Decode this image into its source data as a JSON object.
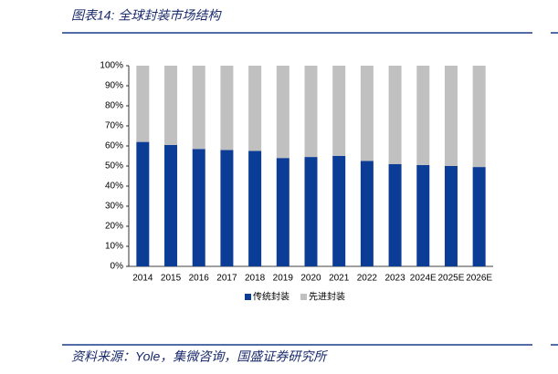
{
  "chart_data": {
    "type": "stacked_bar",
    "title": "图表14:  全球封装市场结构",
    "source": "资料来源：Yole，集微咨询，国盛证券研究所",
    "categories": [
      "2014",
      "2015",
      "2016",
      "2017",
      "2018",
      "2019",
      "2020",
      "2021",
      "2022",
      "2023",
      "2024E",
      "2025E",
      "2026E"
    ],
    "series": [
      {
        "name": "传统封装",
        "color": "#0b3c96",
        "values": [
          62,
          60.5,
          58.5,
          58,
          57.5,
          54,
          54.5,
          55,
          52.5,
          51,
          50.5,
          50,
          49.5
        ]
      },
      {
        "name": "先进封装",
        "color": "#c0c0c0",
        "values": [
          38,
          39.5,
          41.5,
          42,
          42.5,
          46,
          45.5,
          45,
          47.5,
          49,
          49.5,
          50,
          50.5
        ]
      }
    ],
    "ylim": [
      0,
      100
    ],
    "yticks": [
      {
        "value": 0,
        "label": "0%"
      },
      {
        "value": 10,
        "label": "10%"
      },
      {
        "value": 20,
        "label": "20%"
      },
      {
        "value": 30,
        "label": "30%"
      },
      {
        "value": 40,
        "label": "40%"
      },
      {
        "value": 50,
        "label": "50%"
      },
      {
        "value": 60,
        "label": "60%"
      },
      {
        "value": 70,
        "label": "70%"
      },
      {
        "value": 80,
        "label": "80%"
      },
      {
        "value": 90,
        "label": "90%"
      },
      {
        "value": 100,
        "label": "100%"
      }
    ]
  }
}
